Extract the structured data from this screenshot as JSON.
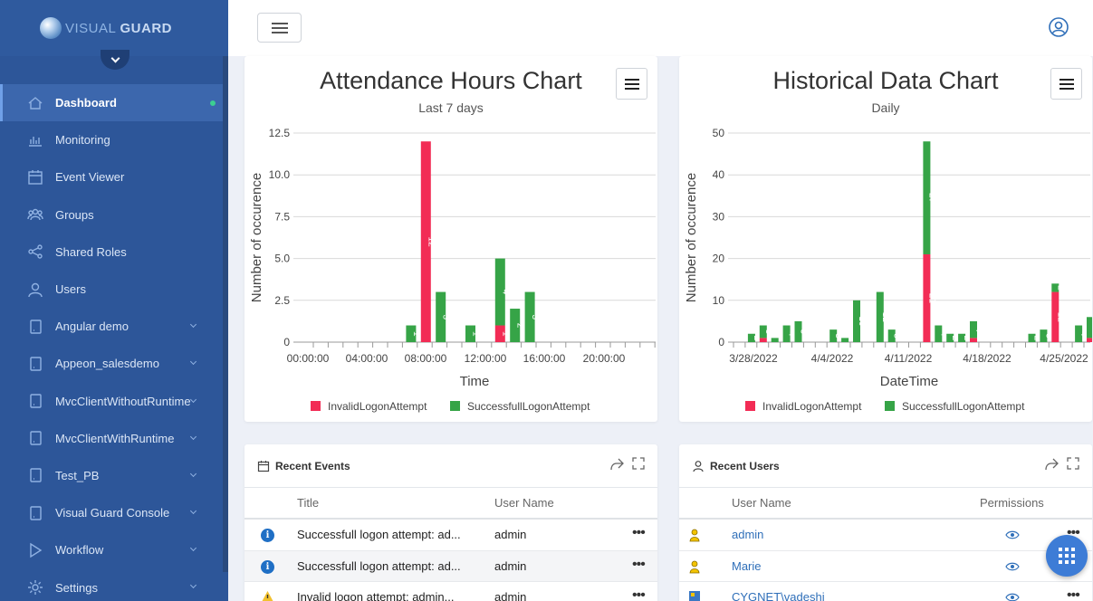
{
  "app": {
    "logo_part1": "VISUAL",
    "logo_part2": "GUARD"
  },
  "sidebar": {
    "items": [
      {
        "label": "Dashboard",
        "icon": "home-icon",
        "active": true
      },
      {
        "label": "Monitoring",
        "icon": "bar-chart-icon"
      },
      {
        "label": "Event Viewer",
        "icon": "calendar-icon"
      },
      {
        "label": "Groups",
        "icon": "groups-icon"
      },
      {
        "label": "Shared Roles",
        "icon": "share-icon"
      },
      {
        "label": "Users",
        "icon": "user-icon"
      },
      {
        "label": "Angular demo",
        "icon": "app-icon",
        "expandable": true
      },
      {
        "label": "Appeon_salesdemo",
        "icon": "app-icon",
        "expandable": true
      },
      {
        "label": "MvcClientWithoutRuntime",
        "icon": "app-icon",
        "expandable": true
      },
      {
        "label": "MvcClientWithRuntime",
        "icon": "app-icon",
        "expandable": true
      },
      {
        "label": "Test_PB",
        "icon": "app-icon",
        "expandable": true
      },
      {
        "label": "Visual Guard Console",
        "icon": "app-icon",
        "expandable": true
      },
      {
        "label": "Workflow",
        "icon": "play-icon",
        "expandable": true
      },
      {
        "label": "Settings",
        "icon": "gear-icon",
        "expandable": true
      }
    ]
  },
  "chart_data": [
    {
      "type": "bar",
      "stacked": true,
      "title": "Attendance Hours Chart",
      "subtitle": "Last 7 days",
      "xlabel": "Time",
      "ylabel": "Number of occurence",
      "ylim": [
        0,
        12.5
      ],
      "yticks": [
        "0",
        "2.5",
        "5.0",
        "7.5",
        "10.0",
        "12.5"
      ],
      "xticks": [
        "00:00:00",
        "04:00:00",
        "08:00:00",
        "12:00:00",
        "16:00:00",
        "20:00:00"
      ],
      "x": [
        6,
        7,
        8,
        10,
        12,
        13,
        14
      ],
      "series": [
        {
          "name": "InvalidLogonAttempt",
          "color": "#f22c55",
          "values": [
            0,
            12,
            0,
            0,
            1,
            0,
            0
          ]
        },
        {
          "name": "SuccessfullLogonAttempt",
          "color": "#36a447",
          "values": [
            1,
            0,
            3,
            1,
            4,
            2,
            3
          ]
        }
      ],
      "legend": "bottom"
    },
    {
      "type": "bar",
      "stacked": true,
      "title": "Historical Data Chart",
      "subtitle": "Daily",
      "xlabel": "DateTime",
      "ylabel": "Number of occurence",
      "ylim": [
        0,
        50
      ],
      "yticks": [
        "0",
        "10",
        "20",
        "30",
        "40",
        "50"
      ],
      "xticks": [
        "3/28/2022",
        "4/4/2022",
        "4/11/2022",
        "4/18/2022",
        "4/25/2022"
      ],
      "x": [
        "3/27/2022",
        "3/28/2022",
        "3/29/2022",
        "3/30/2022",
        "3/31/2022",
        "4/1/2022",
        "4/3/2022",
        "4/4/2022",
        "4/5/2022",
        "4/6/2022",
        "4/7/2022",
        "4/8/2022",
        "4/9/2022",
        "4/10/2022",
        "4/11/2022",
        "4/12/2022",
        "4/13/2022",
        "4/14/2022",
        "4/15/2022",
        "4/16/2022",
        "4/20/2022",
        "4/21/2022",
        "4/22/2022",
        "4/24/2022",
        "4/25/2022"
      ],
      "series": [
        {
          "name": "InvalidLogonAttempt",
          "color": "#f22c55",
          "values": [
            0,
            1,
            0,
            0,
            0,
            0,
            0,
            0,
            0,
            0,
            0,
            0,
            0,
            0,
            21,
            0,
            0,
            0,
            1,
            0,
            0,
            0,
            12,
            0,
            1
          ]
        },
        {
          "name": "SuccessfullLogonAttempt",
          "color": "#36a447",
          "values": [
            2,
            3,
            1,
            4,
            5,
            0,
            3,
            1,
            10,
            0,
            12,
            3,
            0,
            0,
            27,
            4,
            2,
            2,
            4,
            0,
            2,
            3,
            2,
            4,
            5
          ]
        }
      ],
      "legend": "bottom"
    }
  ],
  "recent_events": {
    "title": "Recent Events",
    "columns": {
      "title": "Title",
      "user": "User Name"
    },
    "rows": [
      {
        "icon": "info-icon",
        "title": "Successfull logon attempt: ad...",
        "user": "admin"
      },
      {
        "icon": "info-icon",
        "title": "Successfull logon attempt: ad...",
        "user": "admin"
      },
      {
        "icon": "warning-icon",
        "title": "Invalid logon attempt: admin...",
        "user": "admin"
      }
    ]
  },
  "recent_users": {
    "title": "Recent Users",
    "columns": {
      "user": "User Name",
      "permissions": "Permissions"
    },
    "rows": [
      {
        "icon": "user-yellow-icon",
        "name": "admin"
      },
      {
        "icon": "user-yellow-icon",
        "name": "Marie"
      },
      {
        "icon": "windows-user-icon",
        "name": "CYGNET\\vadeshi"
      }
    ]
  }
}
